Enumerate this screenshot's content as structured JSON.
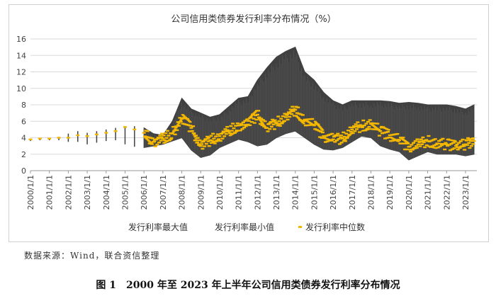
{
  "chart_data": {
    "type": "line",
    "title": "公司信用类债券发行利率分布情况（%）",
    "xlabel": "",
    "ylabel": "",
    "ylim": [
      0,
      16
    ],
    "yticks": [
      0,
      2,
      4,
      6,
      8,
      10,
      12,
      14,
      16
    ],
    "categories": [
      "2000/1/1",
      "2001/1/1",
      "2002/1/1",
      "2003/1/1",
      "2004/1/1",
      "2005/1/1",
      "2006/1/1",
      "2007/1/1",
      "2008/1/1",
      "2009/1/1",
      "2010/1/1",
      "2011/1/1",
      "2012/1/1",
      "2013/1/1",
      "2014/1/1",
      "2015/1/1",
      "2016/1/1",
      "2017/1/1",
      "2018/1/1",
      "2019/1/1",
      "2020/1/1",
      "2021/1/1",
      "2022/1/1",
      "2023/1/1"
    ],
    "x": [
      2000.0,
      2000.5,
      2001.0,
      2001.5,
      2002.0,
      2002.5,
      2003.0,
      2003.5,
      2004.0,
      2004.5,
      2005.0,
      2005.5,
      2006.0,
      2006.5,
      2007.0,
      2007.5,
      2008.0,
      2008.5,
      2009.0,
      2009.5,
      2010.0,
      2010.5,
      2011.0,
      2011.5,
      2012.0,
      2012.5,
      2013.0,
      2013.5,
      2014.0,
      2014.5,
      2015.0,
      2015.5,
      2016.0,
      2016.5,
      2017.0,
      2017.5,
      2018.0,
      2018.5,
      2019.0,
      2019.5,
      2020.0,
      2020.5,
      2021.0,
      2021.5,
      2022.0,
      2022.5,
      2023.0,
      2023.45
    ],
    "series": [
      {
        "name": "发行利率最大值",
        "color": "#404040",
        "values": [
          3.9,
          4.0,
          4.0,
          4.1,
          4.5,
          4.8,
          4.6,
          4.8,
          5.0,
          5.2,
          5.4,
          5.4,
          5.2,
          4.5,
          4.3,
          6.0,
          8.8,
          7.5,
          7.0,
          6.5,
          6.8,
          7.8,
          8.8,
          9.0,
          11.0,
          12.5,
          13.8,
          14.5,
          15.0,
          12.0,
          11.0,
          9.5,
          8.5,
          8.0,
          8.5,
          8.5,
          8.5,
          8.5,
          8.4,
          8.2,
          8.3,
          8.2,
          8.0,
          8.0,
          8.0,
          7.8,
          7.5,
          8.0
        ]
      },
      {
        "name": "发行利率最小值",
        "color": "#404040",
        "values": [
          3.6,
          3.7,
          3.7,
          3.7,
          3.5,
          3.5,
          3.2,
          3.4,
          3.6,
          3.7,
          3.2,
          2.9,
          2.8,
          3.0,
          3.2,
          3.6,
          4.0,
          2.5,
          1.6,
          1.9,
          2.8,
          3.3,
          3.8,
          3.5,
          3.0,
          3.2,
          4.0,
          4.5,
          4.8,
          4.0,
          3.2,
          2.6,
          2.5,
          2.8,
          3.5,
          4.2,
          4.0,
          3.0,
          2.6,
          2.3,
          1.3,
          1.8,
          2.3,
          2.0,
          2.0,
          2.0,
          1.8,
          2.0
        ]
      },
      {
        "name": "发行利率中位数",
        "color": "#F5B800",
        "values": [
          3.8,
          3.9,
          3.9,
          4.0,
          4.0,
          4.3,
          4.2,
          4.4,
          4.6,
          4.8,
          5.3,
          5.0,
          4.6,
          3.5,
          3.9,
          4.5,
          6.3,
          5.2,
          3.0,
          3.7,
          4.2,
          4.8,
          5.5,
          5.6,
          6.8,
          5.2,
          5.8,
          6.5,
          7.4,
          6.2,
          5.5,
          4.2,
          3.8,
          3.9,
          5.0,
          5.4,
          5.7,
          4.8,
          4.3,
          3.7,
          2.9,
          3.2,
          3.6,
          3.3,
          3.2,
          3.0,
          3.2,
          3.6
        ]
      }
    ],
    "legend": {
      "position": "bottom",
      "entries": [
        "发行利率最大值",
        "发行利率最小值",
        "发行利率中位数"
      ]
    },
    "grid": true
  },
  "source_note": "数据来源：Wind，联合资信整理",
  "figure_caption": "图 1　2000 年至 2023 年上半年公司信用类债券发行利率分布情况",
  "colors": {
    "band": "#404040",
    "median": "#F5B800",
    "grid": "#d9d9d9",
    "axis": "#999999"
  }
}
